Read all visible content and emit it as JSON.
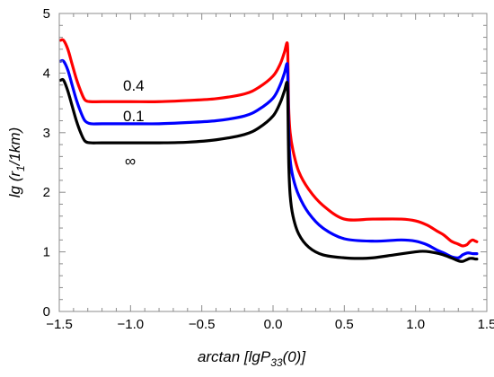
{
  "chart_data": {
    "type": "line",
    "title": "",
    "xlabel": {
      "main": "arctan [lgP",
      "sub": "33",
      "tail": "(0)]"
    },
    "ylabel": {
      "main": "lg (r",
      "sub": "1",
      "tail": "/1km)"
    },
    "xlim": [
      -1.5,
      1.5
    ],
    "ylim": [
      0,
      5
    ],
    "xticks": [
      -1.5,
      -1.0,
      -0.5,
      0.0,
      0.5,
      1.0,
      1.5
    ],
    "xtick_labels": [
      "−1.5",
      "−1.0",
      "−0.5",
      "0.0",
      "0.5",
      "1.0",
      "1.5"
    ],
    "yticks": [
      0,
      1,
      2,
      3,
      4,
      5
    ],
    "ytick_labels": [
      "0",
      "1",
      "2",
      "3",
      "4",
      "5"
    ],
    "grid": false,
    "series": [
      {
        "name": "0.4",
        "color": "#ff0000",
        "x": [
          -1.49,
          -1.47,
          -1.44,
          -1.41,
          -1.38,
          -1.35,
          -1.32,
          -1.28,
          -1.2,
          -1.0,
          -0.8,
          -0.6,
          -0.4,
          -0.2,
          -0.1,
          0.0,
          0.05,
          0.08,
          0.1,
          0.105,
          0.11,
          0.12,
          0.14,
          0.18,
          0.25,
          0.35,
          0.5,
          0.7,
          0.9,
          1.0,
          1.08,
          1.15,
          1.2,
          1.25,
          1.3,
          1.33,
          1.36,
          1.38,
          1.4,
          1.42,
          1.43
        ],
        "y": [
          4.55,
          4.55,
          4.4,
          4.15,
          3.9,
          3.7,
          3.55,
          3.52,
          3.52,
          3.52,
          3.52,
          3.54,
          3.57,
          3.65,
          3.76,
          3.95,
          4.15,
          4.35,
          4.5,
          4.1,
          3.4,
          3.0,
          2.7,
          2.35,
          2.05,
          1.78,
          1.55,
          1.55,
          1.55,
          1.52,
          1.45,
          1.35,
          1.28,
          1.18,
          1.13,
          1.1,
          1.12,
          1.17,
          1.2,
          1.18,
          1.17
        ]
      },
      {
        "name": "0.1",
        "color": "#0000ff",
        "x": [
          -1.49,
          -1.47,
          -1.44,
          -1.41,
          -1.38,
          -1.35,
          -1.32,
          -1.28,
          -1.2,
          -1.0,
          -0.8,
          -0.6,
          -0.4,
          -0.2,
          -0.1,
          0.0,
          0.05,
          0.08,
          0.1,
          0.105,
          0.11,
          0.12,
          0.14,
          0.18,
          0.25,
          0.35,
          0.5,
          0.7,
          0.9,
          1.0,
          1.08,
          1.15,
          1.2,
          1.25,
          1.3,
          1.33,
          1.36,
          1.38,
          1.4,
          1.42,
          1.43
        ],
        "y": [
          4.2,
          4.2,
          4.05,
          3.8,
          3.55,
          3.35,
          3.2,
          3.15,
          3.15,
          3.15,
          3.15,
          3.17,
          3.2,
          3.28,
          3.39,
          3.58,
          3.8,
          4.0,
          4.15,
          3.7,
          3.0,
          2.55,
          2.25,
          1.95,
          1.65,
          1.4,
          1.22,
          1.18,
          1.2,
          1.18,
          1.12,
          1.03,
          0.98,
          0.92,
          0.9,
          0.95,
          0.98,
          0.98,
          0.97,
          0.97,
          0.97
        ]
      },
      {
        "name": "∞",
        "color": "#000000",
        "x": [
          -1.49,
          -1.47,
          -1.44,
          -1.41,
          -1.38,
          -1.35,
          -1.32,
          -1.28,
          -1.2,
          -1.0,
          -0.8,
          -0.6,
          -0.4,
          -0.2,
          -0.1,
          0.0,
          0.05,
          0.08,
          0.1,
          0.105,
          0.11,
          0.12,
          0.14,
          0.18,
          0.25,
          0.35,
          0.5,
          0.6,
          0.7,
          0.85,
          1.0,
          1.05,
          1.1,
          1.18,
          1.25,
          1.3,
          1.33,
          1.36,
          1.38,
          1.4,
          1.42,
          1.43
        ],
        "y": [
          3.88,
          3.88,
          3.7,
          3.45,
          3.2,
          3.0,
          2.86,
          2.83,
          2.83,
          2.83,
          2.83,
          2.84,
          2.88,
          2.97,
          3.08,
          3.28,
          3.5,
          3.7,
          3.83,
          3.3,
          2.5,
          1.95,
          1.6,
          1.3,
          1.08,
          0.95,
          0.9,
          0.89,
          0.9,
          0.95,
          1.0,
          1.01,
          1.0,
          0.96,
          0.9,
          0.85,
          0.84,
          0.87,
          0.89,
          0.89,
          0.88,
          0.88
        ]
      }
    ],
    "annotations": [
      "0.4",
      "0.1",
      "∞"
    ]
  }
}
